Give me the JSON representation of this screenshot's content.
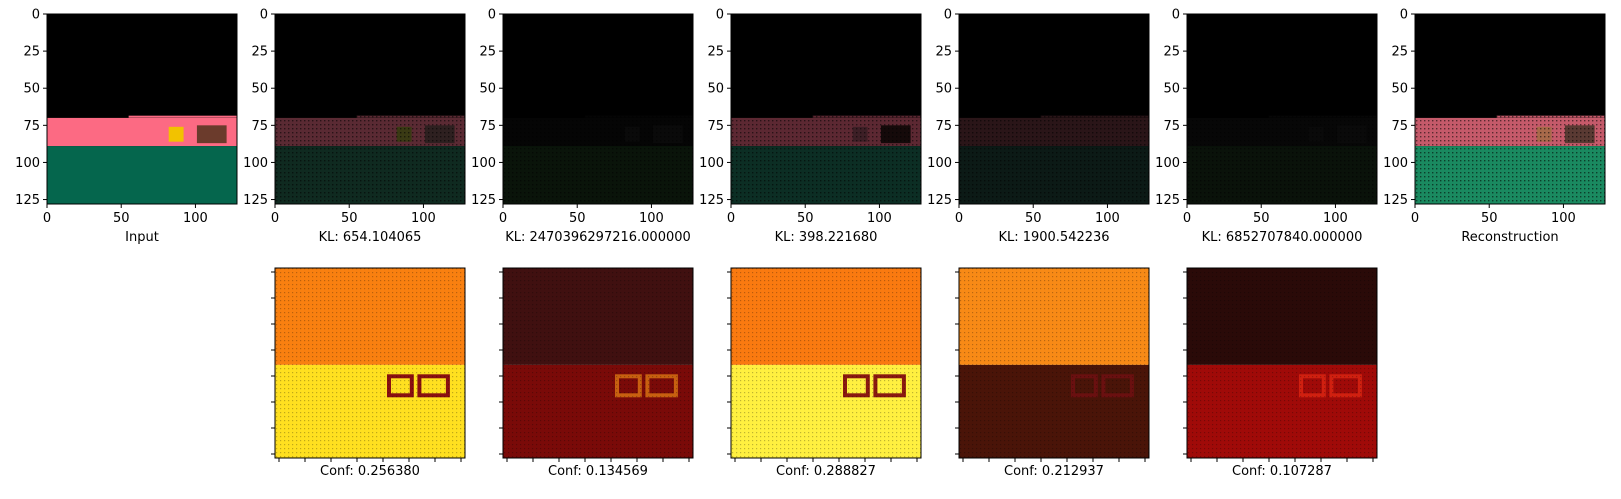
{
  "chart_data": [
    {
      "type": "image",
      "panel": "input",
      "xlabel": "Input",
      "xticks": [
        0,
        50,
        100
      ],
      "yticks": [
        0,
        25,
        50,
        75,
        100,
        125
      ],
      "xlim": [
        0,
        128
      ],
      "ylim": [
        128,
        0
      ],
      "palette": {
        "sky": "#000000",
        "wall": "#fc6a83",
        "floor": "#05664d",
        "object1": "#f2c200",
        "object2": "#6b3b2c"
      }
    },
    {
      "type": "image",
      "panel": "component-1",
      "xlabel": "KL: 654.104065",
      "xticks": [
        0,
        50,
        100
      ],
      "yticks": [
        0,
        25,
        50,
        75,
        100,
        125
      ],
      "xlim": [
        0,
        128
      ],
      "ylim": [
        128,
        0
      ],
      "palette": {
        "sky": "#000000",
        "wall": "#5a2a33",
        "floor": "#0f2a20",
        "object1": "#3a3a14",
        "object2": "#2e2020"
      }
    },
    {
      "type": "image",
      "panel": "component-2",
      "xlabel": "KL: 2470396297216.000000",
      "xticks": [
        0,
        50,
        100
      ],
      "yticks": [
        0,
        25,
        50,
        75,
        100,
        125
      ],
      "xlim": [
        0,
        128
      ],
      "ylim": [
        128,
        0
      ],
      "palette": {
        "sky": "#000000",
        "wall": "#050505",
        "floor": "#0a140a",
        "object1": "#0a0a0a",
        "object2": "#0a0a0a"
      }
    },
    {
      "type": "image",
      "panel": "component-3",
      "xlabel": "KL: 398.221680",
      "xticks": [
        0,
        50,
        100
      ],
      "yticks": [
        0,
        25,
        50,
        75,
        100,
        125
      ],
      "xlim": [
        0,
        128
      ],
      "ylim": [
        128,
        0
      ],
      "palette": {
        "sky": "#000000",
        "wall": "#5c2832",
        "floor": "#0c2e24",
        "object1": "#3d1f26",
        "object2": "#150a0a"
      }
    },
    {
      "type": "image",
      "panel": "component-4",
      "xlabel": "KL: 1900.542236",
      "xticks": [
        0,
        50,
        100
      ],
      "yticks": [
        0,
        25,
        50,
        75,
        100,
        125
      ],
      "xlim": [
        0,
        128
      ],
      "ylim": [
        128,
        0
      ],
      "palette": {
        "sky": "#000000",
        "wall": "#2a1518",
        "floor": "#0c1a16",
        "object1": "#2a1518",
        "object2": "#2a1518"
      }
    },
    {
      "type": "image",
      "panel": "component-5",
      "xlabel": "KL: 6852707840.000000",
      "xticks": [
        0,
        50,
        100
      ],
      "yticks": [
        0,
        25,
        50,
        75,
        100,
        125
      ],
      "xlim": [
        0,
        128
      ],
      "ylim": [
        128,
        0
      ],
      "palette": {
        "sky": "#000000",
        "wall": "#070707",
        "floor": "#0a120a",
        "object1": "#0a0a0a",
        "object2": "#0a0a0a"
      }
    },
    {
      "type": "image",
      "panel": "reconstruction",
      "xlabel": "Reconstruction",
      "xticks": [
        0,
        50,
        100
      ],
      "yticks": [
        0,
        25,
        50,
        75,
        100,
        125
      ],
      "xlim": [
        0,
        128
      ],
      "ylim": [
        128,
        0
      ],
      "palette": {
        "sky": "#000000",
        "wall": "#c55a6a",
        "floor": "#1a8a60",
        "object1": "#a86a4a",
        "object2": "#5a3a33"
      }
    },
    {
      "type": "heatmap",
      "panel": "confidence-1",
      "xlabel": "Conf: 0.256380",
      "colormap": "hot",
      "palette": {
        "upper": "#f98010",
        "lower": "#ffe020",
        "objects": "#8a1010"
      }
    },
    {
      "type": "heatmap",
      "panel": "confidence-2",
      "xlabel": "Conf: 0.134569",
      "colormap": "hot",
      "palette": {
        "upper": "#401010",
        "lower": "#7a0a08",
        "objects": "#c86010"
      }
    },
    {
      "type": "heatmap",
      "panel": "confidence-3",
      "xlabel": "Conf: 0.288827",
      "colormap": "hot",
      "palette": {
        "upper": "#fa7a10",
        "lower": "#fff040",
        "objects": "#8a1a10"
      }
    },
    {
      "type": "heatmap",
      "panel": "confidence-4",
      "xlabel": "Conf: 0.212937",
      "colormap": "hot",
      "palette": {
        "upper": "#f88a16",
        "lower": "#4a1408",
        "objects": "#6a1010"
      }
    },
    {
      "type": "heatmap",
      "panel": "confidence-5",
      "xlabel": "Conf: 0.107287",
      "colormap": "hot",
      "palette": {
        "upper": "#2a0a08",
        "lower": "#a00a08",
        "objects": "#d02010"
      }
    }
  ]
}
